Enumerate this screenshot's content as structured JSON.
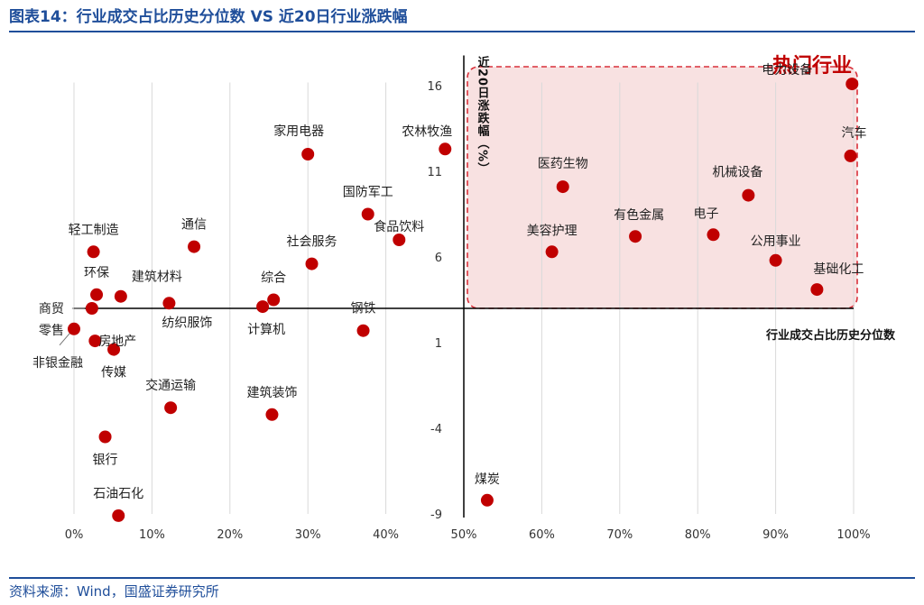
{
  "header": {
    "title": "图表14：行业成交占比历史分位数 VS 近20日行业涨跌幅"
  },
  "footer": {
    "source": "资料来源：Wind，国盛证券研究所"
  },
  "chart_data": {
    "type": "scatter",
    "xlabel": "行业成交占比历史分位数",
    "ylabel": "近20日涨跌幅（%）",
    "xlim": [
      0,
      1
    ],
    "ylim": [
      -9,
      17.5
    ],
    "x_ticks": [
      0,
      0.1,
      0.2,
      0.3,
      0.4,
      0.5,
      0.6,
      0.7,
      0.8,
      0.9,
      1.0
    ],
    "x_tick_labels": [
      "0%",
      "10%",
      "20%",
      "30%",
      "40%",
      "50%",
      "60%",
      "70%",
      "80%",
      "90%",
      "100%"
    ],
    "y_ticks": [
      -9,
      -4,
      1,
      6,
      11,
      16
    ],
    "y_tick_labels": [
      "-9",
      "-4",
      "1",
      "6",
      "11",
      "16"
    ],
    "grid": "vertical",
    "point_color": "#c00000",
    "highlight_region": {
      "label": "热门行业",
      "x_range": [
        0.5,
        1.0
      ],
      "y_range": [
        3.0,
        17.0
      ],
      "fill_color": "#f8e1e1",
      "border_color": "#d9303a"
    },
    "points": [
      {
        "label": "电力设备",
        "x": 0.998,
        "y": 16.1
      },
      {
        "label": "汽车",
        "x": 0.996,
        "y": 11.9
      },
      {
        "label": "机械设备",
        "x": 0.865,
        "y": 9.6
      },
      {
        "label": "电子",
        "x": 0.82,
        "y": 7.3
      },
      {
        "label": "公用事业",
        "x": 0.9,
        "y": 5.8
      },
      {
        "label": "基础化工",
        "x": 0.953,
        "y": 4.1
      },
      {
        "label": "有色金属",
        "x": 0.72,
        "y": 7.2
      },
      {
        "label": "医药生物",
        "x": 0.627,
        "y": 10.1
      },
      {
        "label": "美容护理",
        "x": 0.613,
        "y": 6.3
      },
      {
        "label": "煤炭",
        "x": 0.53,
        "y": -8.2
      },
      {
        "label": "农林牧渔",
        "x": 0.476,
        "y": 12.3
      },
      {
        "label": "家用电器",
        "x": 0.3,
        "y": 12.0
      },
      {
        "label": "国防军工",
        "x": 0.377,
        "y": 8.5
      },
      {
        "label": "食品饮料",
        "x": 0.417,
        "y": 7.0
      },
      {
        "label": "社会服务",
        "x": 0.305,
        "y": 5.6
      },
      {
        "label": "综合",
        "x": 0.256,
        "y": 3.5
      },
      {
        "label": "计算机",
        "x": 0.242,
        "y": 3.1
      },
      {
        "label": "钢铁",
        "x": 0.371,
        "y": 1.7
      },
      {
        "label": "建筑装饰",
        "x": 0.254,
        "y": -3.2
      },
      {
        "label": "通信",
        "x": 0.154,
        "y": 6.6
      },
      {
        "label": "纺织服饰",
        "x": 0.122,
        "y": 3.3
      },
      {
        "label": "交通运输",
        "x": 0.124,
        "y": -2.8
      },
      {
        "label": "建筑材料",
        "x": 0.06,
        "y": 3.7
      },
      {
        "label": "轻工制造",
        "x": 0.025,
        "y": 6.3
      },
      {
        "label": "环保",
        "x": 0.029,
        "y": 3.8
      },
      {
        "label": "商贸零售",
        "x": 0.023,
        "y": 3.0
      },
      {
        "label": "房地产",
        "x": 0.027,
        "y": 1.1
      },
      {
        "label": "传媒",
        "x": 0.051,
        "y": 0.6
      },
      {
        "label": "非银金融",
        "x": 0.0,
        "y": 1.8
      },
      {
        "label": "银行",
        "x": 0.04,
        "y": -4.5
      },
      {
        "label": "石油石化",
        "x": 0.057,
        "y": -9.1
      }
    ]
  }
}
